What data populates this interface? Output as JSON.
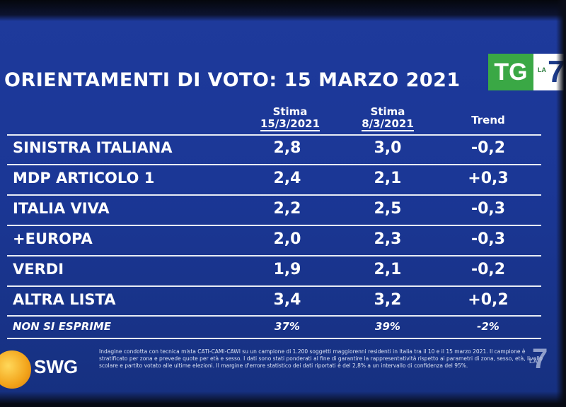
{
  "title": "ORIENTAMENTI DI VOTO: 15 MARZO 2021",
  "logo": {
    "tg": "TG",
    "la": "LA",
    "seven": "7"
  },
  "columns": {
    "col1": {
      "line1": "Stima",
      "line2": "15/3/2021"
    },
    "col2": {
      "line1": "Stima",
      "line2": "8/3/2021"
    },
    "col3": {
      "line1": "Trend"
    }
  },
  "rows": [
    {
      "party": "SINISTRA ITALIANA",
      "v1": "2,8",
      "v2": "3,0",
      "trend": "-0,2"
    },
    {
      "party": "MDP ARTICOLO 1",
      "v1": "2,4",
      "v2": "2,1",
      "trend": "+0,3"
    },
    {
      "party": "ITALIA VIVA",
      "v1": "2,2",
      "v2": "2,5",
      "trend": "-0,3"
    },
    {
      "party": "+EUROPA",
      "v1": "2,0",
      "v2": "2,3",
      "trend": "-0,3"
    },
    {
      "party": "VERDI",
      "v1": "1,9",
      "v2": "2,1",
      "trend": "-0,2"
    },
    {
      "party": "ALTRA LISTA",
      "v1": "3,4",
      "v2": "3,2",
      "trend": "+0,2"
    },
    {
      "party": "NON SI ESPRIME",
      "v1": "37%",
      "v2": "39%",
      "trend": "-2%"
    }
  ],
  "footer": {
    "brand": "SWG",
    "note": "Indagine condotta con tecnica mista CATI-CAMI-CAWI su un campione di 1.200 soggetti maggiorenni residenti in Italia tra il 10 e il 15 marzo 2021. Il campione è stratificato per zona e prevede quote per età e sesso. I dati sono stati ponderati al fine di garantire la rappresentatività rispetto ai parametri di zona, sesso, età, livello scolare e partito votato alle ultime elezioni. Il margine d'errore statistico dei dati riportati è del 2,8% a un intervallo di confidenza del 95%.",
    "la": "LA",
    "seven": "7"
  },
  "colors": {
    "background": "#1b3796",
    "logo_green": "#3aa845",
    "text": "#ffffff"
  }
}
